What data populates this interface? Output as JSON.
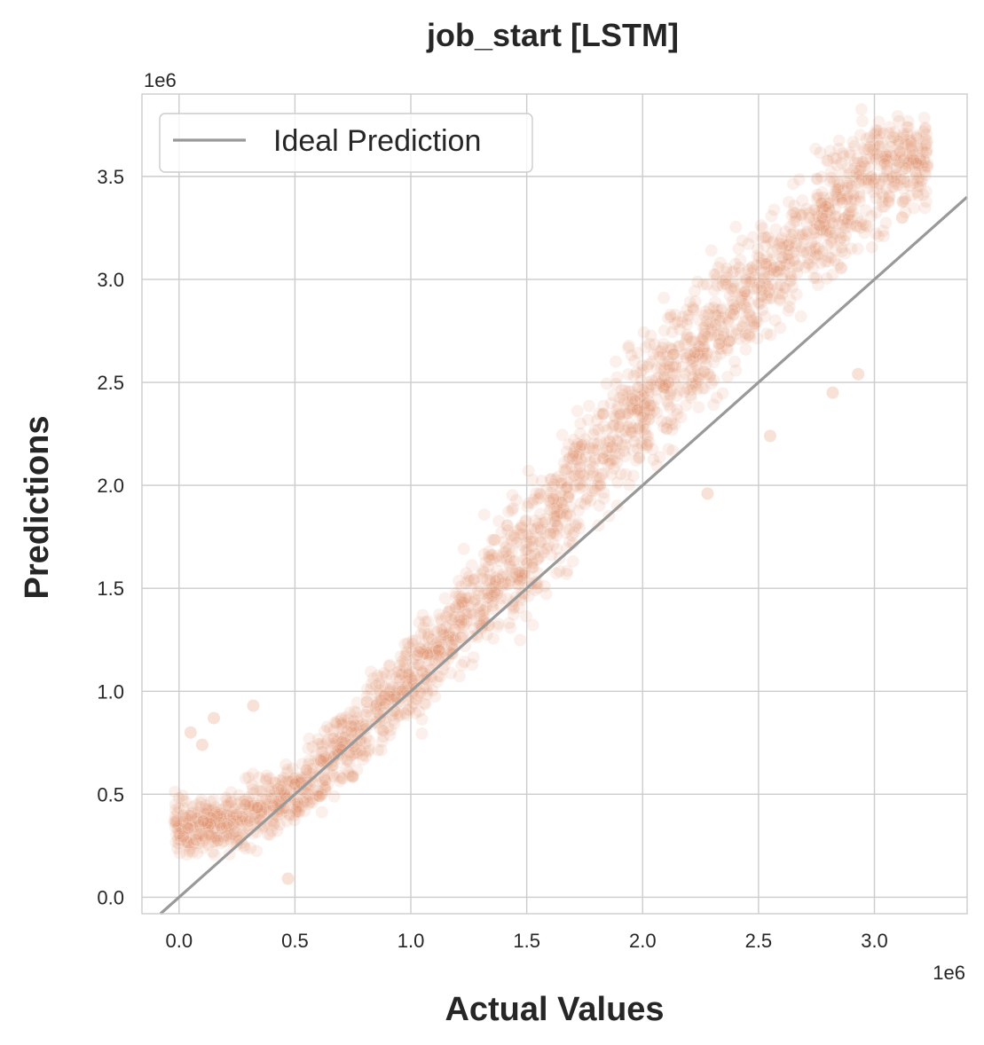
{
  "chart_data": {
    "type": "scatter",
    "title": "job_start [LSTM]",
    "xlabel": "Actual Values",
    "ylabel": "Predictions",
    "x_scale_label": "1e6",
    "y_scale_label": "1e6",
    "xlim": [
      -0.16,
      3.4
    ],
    "ylim": [
      -0.08,
      3.9
    ],
    "x_ticks": [
      0.0,
      0.5,
      1.0,
      1.5,
      2.0,
      2.5,
      3.0
    ],
    "x_tick_labels": [
      "0.0",
      "0.5",
      "1.0",
      "1.5",
      "2.0",
      "2.5",
      "3.0"
    ],
    "y_ticks": [
      0.0,
      0.5,
      1.0,
      1.5,
      2.0,
      2.5,
      3.0,
      3.5
    ],
    "y_tick_labels": [
      "0.0",
      "0.5",
      "1.0",
      "1.5",
      "2.0",
      "2.5",
      "3.0",
      "3.5"
    ],
    "grid": true,
    "legend_position": "top-left",
    "series": [
      {
        "name": "",
        "kind": "points",
        "color": "#e2875a",
        "opacity": 0.12,
        "trend": {
          "x": [
            0.0,
            0.25,
            0.5,
            0.75,
            1.0,
            1.25,
            1.5,
            1.75,
            2.0,
            2.25,
            2.5,
            2.75,
            3.0,
            3.2
          ],
          "y": [
            0.35,
            0.36,
            0.5,
            0.78,
            1.05,
            1.38,
            1.7,
            2.05,
            2.38,
            2.7,
            2.98,
            3.25,
            3.5,
            3.58
          ]
        },
        "spread": {
          "x": [
            0.0,
            0.5,
            1.0,
            1.5,
            2.0,
            2.5,
            3.0,
            3.2
          ],
          "y": [
            0.13,
            0.15,
            0.22,
            0.3,
            0.3,
            0.28,
            0.3,
            0.2
          ]
        },
        "outliers": [
          {
            "x": 0.05,
            "y": 0.8
          },
          {
            "x": 0.15,
            "y": 0.87
          },
          {
            "x": 0.32,
            "y": 0.93
          },
          {
            "x": 0.1,
            "y": 0.74
          },
          {
            "x": 0.47,
            "y": 0.09
          },
          {
            "x": 2.55,
            "y": 2.24
          },
          {
            "x": 2.82,
            "y": 2.45
          },
          {
            "x": 2.93,
            "y": 2.54
          },
          {
            "x": 3.12,
            "y": 3.3
          },
          {
            "x": 2.28,
            "y": 1.96
          }
        ]
      },
      {
        "name": "Ideal Prediction",
        "kind": "line",
        "color": "#999999",
        "x": [
          -0.2,
          3.4
        ],
        "y": [
          -0.2,
          3.4
        ]
      }
    ]
  }
}
